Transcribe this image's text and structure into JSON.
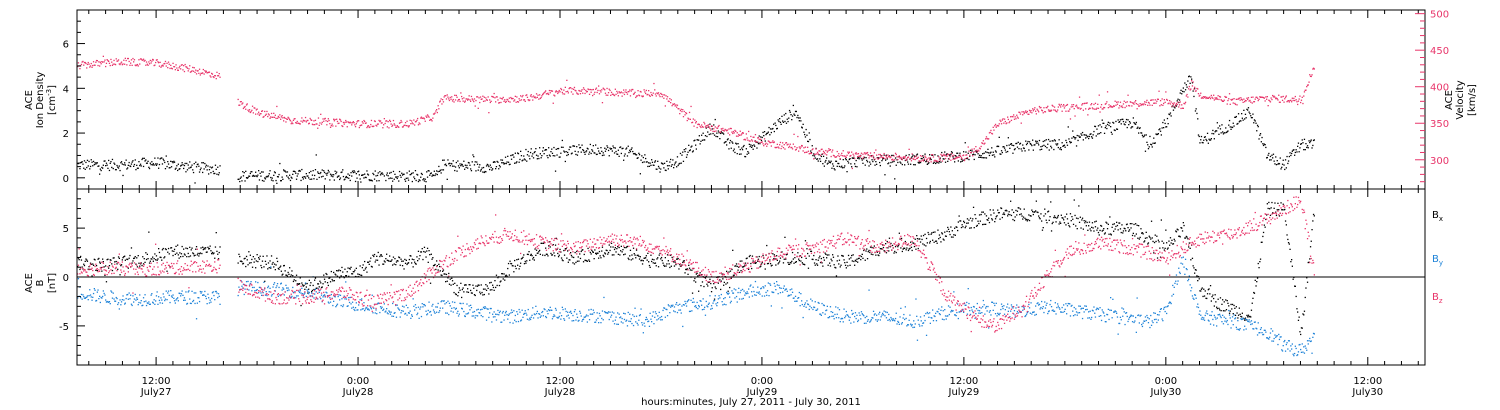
{
  "colors": {
    "black": "#000000",
    "pink": "#e8356a",
    "blue": "#1e83d8",
    "axis": "#000000"
  },
  "xaxis": {
    "title": "hours:minutes, July 27, 2011 - July 30, 2011",
    "ticks": [
      {
        "time": "12:00",
        "day": "July27",
        "hour": 12
      },
      {
        "time": "0:00",
        "day": "July28",
        "hour": 24
      },
      {
        "time": "12:00",
        "day": "July28",
        "hour": 36
      },
      {
        "time": "0:00",
        "day": "July29",
        "hour": 48
      },
      {
        "time": "12:00",
        "day": "July29",
        "hour": 60
      },
      {
        "time": "0:00",
        "day": "July30",
        "hour": 72
      },
      {
        "time": "12:00",
        "day": "July30",
        "hour": 84
      }
    ],
    "range_hours": [
      7.3,
      87.4
    ]
  },
  "chart_data": [
    {
      "type": "scatter",
      "left_axis": {
        "label_line1": "ACE",
        "label_line2": "Ion Density",
        "label_line3": "[cm",
        "label_sup": "-3",
        "label_close": "]",
        "ylim": [
          -0.5,
          7.5
        ],
        "ticks": [
          "0",
          "2",
          "4",
          "6"
        ]
      },
      "right_axis": {
        "label_line1": "ACE",
        "label_line2": "Velocity",
        "label_line3": "[km/s]",
        "ylim": [
          260,
          505
        ],
        "ticks": [
          "300",
          "350",
          "400",
          "450",
          "500"
        ]
      },
      "series": [
        {
          "color": "black",
          "axis": "left",
          "points": [
            [
              7.3,
              0.6
            ],
            [
              10,
              0.6
            ],
            [
              12,
              0.7
            ],
            [
              14,
              0.5
            ],
            [
              15.8,
              0.4
            ],
            [
              16.8,
              0.1
            ],
            [
              20,
              0.15
            ],
            [
              24,
              0.15
            ],
            [
              27,
              0.1
            ],
            [
              28.6,
              0.1
            ],
            [
              29,
              0.6
            ],
            [
              32,
              0.5
            ],
            [
              34,
              1.1
            ],
            [
              36,
              1.2
            ],
            [
              38,
              1.3
            ],
            [
              40,
              1.2
            ],
            [
              42,
              0.5
            ],
            [
              43,
              0.8
            ],
            [
              44,
              1.5
            ],
            [
              45,
              2.3
            ],
            [
              46,
              1.5
            ],
            [
              47,
              1.2
            ],
            [
              48,
              1.8
            ],
            [
              49,
              2.5
            ],
            [
              50,
              3.0
            ],
            [
              51,
              1.2
            ],
            [
              52,
              0.6
            ],
            [
              54,
              0.8
            ],
            [
              56,
              0.8
            ],
            [
              58,
              0.9
            ],
            [
              60,
              1.0
            ],
            [
              62,
              1.2
            ],
            [
              64,
              1.5
            ],
            [
              66,
              1.5
            ],
            [
              67,
              1.8
            ],
            [
              68,
              2.2
            ],
            [
              70,
              2.5
            ],
            [
              71,
              1.5
            ],
            [
              72,
              2.5
            ],
            [
              73,
              4.0
            ],
            [
              73.5,
              4.5
            ],
            [
              74,
              1.6
            ],
            [
              76,
              2.5
            ],
            [
              77,
              3.0
            ],
            [
              78,
              1.0
            ],
            [
              79,
              0.6
            ],
            [
              80,
              1.5
            ],
            [
              80.8,
              1.5
            ]
          ]
        },
        {
          "color": "pink",
          "axis": "right",
          "points": [
            [
              7.3,
              430
            ],
            [
              10,
              435
            ],
            [
              12,
              433
            ],
            [
              14,
              425
            ],
            [
              15.8,
              415
            ],
            [
              16.8,
              380
            ],
            [
              18,
              365
            ],
            [
              20,
              355
            ],
            [
              24,
              350
            ],
            [
              27,
              350
            ],
            [
              28.5,
              360
            ],
            [
              29,
              385
            ],
            [
              32,
              383
            ],
            [
              34,
              385
            ],
            [
              36,
              395
            ],
            [
              38,
              395
            ],
            [
              40,
              392
            ],
            [
              42,
              392
            ],
            [
              43,
              370
            ],
            [
              44,
              350
            ],
            [
              46,
              340
            ],
            [
              48,
              325
            ],
            [
              50,
              318
            ],
            [
              51,
              312
            ],
            [
              52,
              310
            ],
            [
              54,
              306
            ],
            [
              56,
              305
            ],
            [
              58,
              303
            ],
            [
              60,
              305
            ],
            [
              61,
              320
            ],
            [
              62,
              350
            ],
            [
              64,
              368
            ],
            [
              66,
              372
            ],
            [
              68,
              375
            ],
            [
              70,
              378
            ],
            [
              72,
              380
            ],
            [
              73,
              375
            ],
            [
              73.5,
              405
            ],
            [
              74,
              390
            ],
            [
              76,
              380
            ],
            [
              78,
              385
            ],
            [
              80,
              383
            ],
            [
              80.8,
              430
            ]
          ]
        }
      ]
    },
    {
      "type": "scatter",
      "left_axis": {
        "label_line1": "ACE",
        "label_line2": "B",
        "label_line3": "[nT]",
        "ylim": [
          -9,
          9
        ],
        "ticks": [
          "-5",
          "0",
          "5"
        ]
      },
      "legend": [
        {
          "base": "B",
          "sub": "x",
          "color": "black"
        },
        {
          "base": "B",
          "sub": "y",
          "color": "blue"
        },
        {
          "base": "B",
          "sub": "z",
          "color": "pink"
        }
      ],
      "zero_line": true,
      "series": [
        {
          "color": "black",
          "axis": "left",
          "points": [
            [
              7.3,
              1.5
            ],
            [
              9,
              1.3
            ],
            [
              11,
              1.8
            ],
            [
              13,
              2.7
            ],
            [
              15.8,
              2.5
            ],
            [
              17,
              1.8
            ],
            [
              19,
              1.5
            ],
            [
              21,
              -1.0
            ],
            [
              23,
              0.5
            ],
            [
              24,
              0.5
            ],
            [
              25,
              2.0
            ],
            [
              27,
              1.5
            ],
            [
              28,
              2.5
            ],
            [
              30,
              -1.5
            ],
            [
              32,
              -1.0
            ],
            [
              33,
              1.0
            ],
            [
              35,
              3.0
            ],
            [
              37,
              2.0
            ],
            [
              39,
              3.0
            ],
            [
              41,
              2.0
            ],
            [
              43,
              1.5
            ],
            [
              45,
              -1.0
            ],
            [
              47,
              1.5
            ],
            [
              49,
              2.0
            ],
            [
              51,
              2.0
            ],
            [
              53,
              1.5
            ],
            [
              55,
              3.0
            ],
            [
              57,
              3.5
            ],
            [
              59,
              4.5
            ],
            [
              60,
              5.5
            ],
            [
              62,
              6.5
            ],
            [
              64,
              6.5
            ],
            [
              66,
              6.0
            ],
            [
              68,
              5.0
            ],
            [
              70,
              5.0
            ],
            [
              72,
              3.0
            ],
            [
              73,
              5.0
            ],
            [
              74,
              -1.0
            ],
            [
              75,
              -2.5
            ],
            [
              77,
              -4.0
            ],
            [
              78,
              7.0
            ],
            [
              79,
              7.0
            ],
            [
              80,
              -6.0
            ],
            [
              80.8,
              7.0
            ]
          ]
        },
        {
          "color": "blue",
          "axis": "left",
          "points": [
            [
              7.3,
              -1.5
            ],
            [
              9,
              -2.0
            ],
            [
              11,
              -2.2
            ],
            [
              13,
              -2.0
            ],
            [
              15.8,
              -2.0
            ],
            [
              17,
              -1.0
            ],
            [
              19,
              -1.2
            ],
            [
              21,
              -1.5
            ],
            [
              23,
              -2.5
            ],
            [
              25,
              -3.0
            ],
            [
              27,
              -3.5
            ],
            [
              29,
              -3.0
            ],
            [
              31,
              -3.5
            ],
            [
              33,
              -4.0
            ],
            [
              35,
              -3.5
            ],
            [
              37,
              -3.8
            ],
            [
              39,
              -4.0
            ],
            [
              41,
              -4.5
            ],
            [
              43,
              -3.0
            ],
            [
              45,
              -2.5
            ],
            [
              47,
              -1.5
            ],
            [
              49,
              -1.0
            ],
            [
              51,
              -3.0
            ],
            [
              53,
              -4.0
            ],
            [
              55,
              -4.0
            ],
            [
              57,
              -4.5
            ],
            [
              59,
              -3.5
            ],
            [
              61,
              -3.0
            ],
            [
              63,
              -3.5
            ],
            [
              65,
              -3.0
            ],
            [
              67,
              -3.5
            ],
            [
              69,
              -4.0
            ],
            [
              71,
              -4.5
            ],
            [
              72,
              -3.5
            ],
            [
              73,
              2.0
            ],
            [
              74,
              -4.0
            ],
            [
              76,
              -4.5
            ],
            [
              78,
              -5.5
            ],
            [
              79,
              -7.0
            ],
            [
              80,
              -7.5
            ],
            [
              80.8,
              -6.0
            ]
          ]
        },
        {
          "color": "pink",
          "axis": "left",
          "points": [
            [
              7.3,
              0.8
            ],
            [
              9,
              1.0
            ],
            [
              11,
              0.8
            ],
            [
              13,
              1.0
            ],
            [
              15.8,
              1.2
            ],
            [
              17,
              -1.0
            ],
            [
              19,
              -2.0
            ],
            [
              21,
              -2.0
            ],
            [
              23,
              -1.5
            ],
            [
              25,
              -2.5
            ],
            [
              27,
              -1.5
            ],
            [
              29,
              1.5
            ],
            [
              31,
              3.5
            ],
            [
              33,
              4.5
            ],
            [
              35,
              3.5
            ],
            [
              37,
              3.0
            ],
            [
              39,
              4.0
            ],
            [
              41,
              3.5
            ],
            [
              43,
              2.0
            ],
            [
              45,
              0.0
            ],
            [
              47,
              1.0
            ],
            [
              49,
              2.5
            ],
            [
              51,
              3.0
            ],
            [
              53,
              4.0
            ],
            [
              55,
              3.0
            ],
            [
              57,
              4.0
            ],
            [
              58,
              1.0
            ],
            [
              59,
              -2.0
            ],
            [
              61,
              -4.5
            ],
            [
              62,
              -5.0
            ],
            [
              64,
              -2.0
            ],
            [
              66,
              2.5
            ],
            [
              68,
              3.5
            ],
            [
              70,
              3.0
            ],
            [
              72,
              2.0
            ],
            [
              73,
              3.0
            ],
            [
              74,
              4.0
            ],
            [
              76,
              4.5
            ],
            [
              78,
              6.0
            ],
            [
              79,
              7.0
            ],
            [
              80,
              8.0
            ],
            [
              80.8,
              0.5
            ]
          ]
        }
      ]
    }
  ]
}
